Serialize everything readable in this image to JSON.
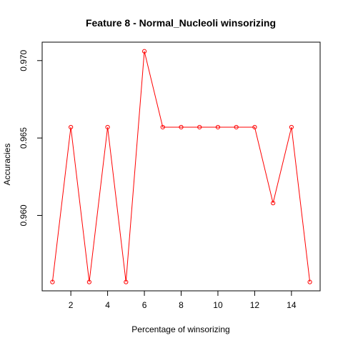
{
  "chart_data": {
    "type": "line",
    "title": "Feature 8 - Normal_Nucleoli winsorizing",
    "xlabel": "Percentage of winsorizing",
    "ylabel": "Accuracies",
    "x": [
      1,
      2,
      3,
      4,
      5,
      6,
      7,
      8,
      9,
      10,
      11,
      12,
      13,
      14,
      15
    ],
    "series": [
      {
        "values": [
          0.9557,
          0.9657,
          0.9557,
          0.9657,
          0.9557,
          0.9706,
          0.9657,
          0.9657,
          0.9657,
          0.9657,
          0.9657,
          0.9657,
          0.9608,
          0.9657,
          0.9557
        ]
      }
    ],
    "x_ticks": [
      "2",
      "4",
      "6",
      "8",
      "10",
      "12",
      "14"
    ],
    "y_ticks": [
      "0.960",
      "0.965",
      "0.970"
    ],
    "x_tick_values": [
      2,
      4,
      6,
      8,
      10,
      12,
      14
    ],
    "y_tick_values": [
      0.96,
      0.965,
      0.97
    ],
    "xlim": [
      0.44,
      15.56
    ],
    "ylim": [
      0.95513,
      0.97119
    ],
    "grid": false,
    "legend": "none",
    "line_color": "#FF0000",
    "marker": "open-circle"
  }
}
